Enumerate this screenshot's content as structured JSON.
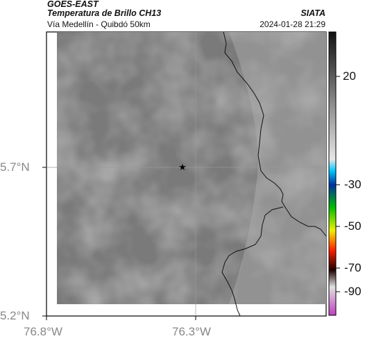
{
  "header": {
    "satellite": "GOES-EAST",
    "product": "Temperatura de Brillo CH13",
    "region": "Vía Medellín - Quibdó 50km",
    "org": "SIATA",
    "datetime": "2024-01-28 21:29"
  },
  "axes": {
    "lat_labels": [
      "5.7°N",
      "5.2°N"
    ],
    "lon_labels": [
      "76.8°W",
      "76.3°W"
    ]
  },
  "colorbar": {
    "tick_labels": [
      "20",
      "-30",
      "-50",
      "-70",
      "-90"
    ],
    "colors": {
      "gray_top": "#111111",
      "gray_mid": "#8a8a8a",
      "gray_low": "#e0e0e0",
      "cyan": "#00c8ff",
      "blue": "#0030a0",
      "green": "#00c000",
      "yellow": "#f0f000",
      "red": "#ff2000",
      "dark": "#200000",
      "magenta": "#c040c0"
    }
  },
  "map": {
    "marker_icon": "star-icon",
    "background": "#7a7a7a"
  }
}
